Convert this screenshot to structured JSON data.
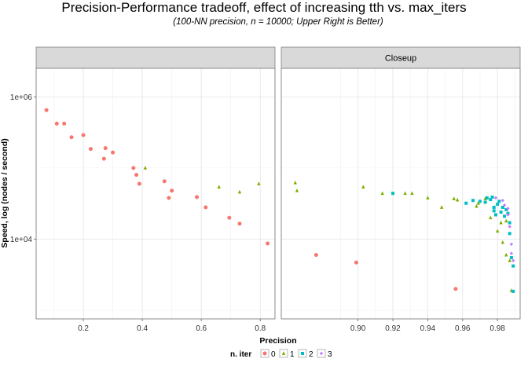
{
  "chart_data": {
    "type": "scatter",
    "title": "Precision-Performance tradeoff, effect of increasing tth vs. max_iters",
    "subtitle": "(100-NN precision, n = 10000; Upper Right is Better)",
    "xlabel": "Precision",
    "ylabel": "Speed, log (nodes / second)",
    "y_scale": "log10",
    "grid": true,
    "legend": {
      "title": "n. iter",
      "placement": "bottom",
      "entries": [
        "0",
        "1",
        "2",
        "3"
      ],
      "colors": [
        "#F8766D",
        "#7CAE00",
        "#00BFC4",
        "#C77CFF"
      ]
    },
    "panels": [
      {
        "strip": "",
        "xlim": [
          0.04,
          0.85
        ],
        "ylim_log10": [
          2.88,
          6.4
        ],
        "xticks": [
          0.2,
          0.4,
          0.6,
          0.8
        ],
        "xtick_labels": [
          "0.2",
          "0.4",
          "0.6",
          "0.8"
        ],
        "yticks": [
          1000000,
          10000
        ],
        "ytick_labels": [
          "1e+06",
          "1e+04"
        ],
        "series": [
          {
            "name": "0",
            "points": [
              [
                0.075,
                650000
              ],
              [
                0.11,
                420000
              ],
              [
                0.135,
                420000
              ],
              [
                0.16,
                270000
              ],
              [
                0.2,
                290000
              ],
              [
                0.225,
                185000
              ],
              [
                0.27,
                135000
              ],
              [
                0.275,
                190000
              ],
              [
                0.3,
                165000
              ],
              [
                0.37,
                100000
              ],
              [
                0.38,
                80000
              ],
              [
                0.39,
                60000
              ],
              [
                0.475,
                65000
              ],
              [
                0.49,
                38000
              ],
              [
                0.5,
                48000
              ],
              [
                0.585,
                39000
              ],
              [
                0.615,
                28000
              ],
              [
                0.695,
                20000
              ],
              [
                0.73,
                16500
              ],
              [
                0.825,
                8700
              ]
            ]
          },
          {
            "name": "1",
            "points": [
              [
                0.41,
                100000
              ],
              [
                0.66,
                54000
              ],
              [
                0.73,
                46000
              ],
              [
                0.795,
                60000
              ]
            ]
          }
        ]
      },
      {
        "strip": "Closeup",
        "xlim": [
          0.856,
          0.993
        ],
        "ylim_log10": [
          2.88,
          6.4
        ],
        "xticks": [
          0.9,
          0.92,
          0.94,
          0.96,
          0.98
        ],
        "xtick_labels": [
          "0.90",
          "0.92",
          "0.94",
          "0.96",
          "0.98"
        ],
        "yticks": [],
        "ytick_labels": [],
        "series": [
          {
            "name": "0",
            "points": [
              [
                0.876,
                6000
              ],
              [
                0.899,
                4700
              ],
              [
                0.956,
                2000
              ]
            ]
          },
          {
            "name": "1",
            "points": [
              [
                0.864,
                62000
              ],
              [
                0.865,
                48000
              ],
              [
                0.903,
                54000
              ],
              [
                0.914,
                44000
              ],
              [
                0.927,
                44000
              ],
              [
                0.931,
                44000
              ],
              [
                0.94,
                38000
              ],
              [
                0.948,
                28000
              ],
              [
                0.955,
                37000
              ],
              [
                0.957,
                35500
              ],
              [
                0.968,
                29000
              ],
              [
                0.969,
                32000
              ],
              [
                0.973,
                37000
              ],
              [
                0.976,
                20000
              ],
              [
                0.98,
                13000
              ],
              [
                0.982,
                17000
              ],
              [
                0.983,
                9000
              ],
              [
                0.985,
                18000
              ],
              [
                0.985,
                6000
              ],
              [
                0.987,
                5000
              ],
              [
                0.988,
                1900
              ]
            ]
          },
          {
            "name": "2",
            "points": [
              [
                0.92,
                44000
              ],
              [
                0.962,
                32000
              ],
              [
                0.966,
                35000
              ],
              [
                0.97,
                34000
              ],
              [
                0.973,
                33000
              ],
              [
                0.974,
                38000
              ],
              [
                0.976,
                36000
              ],
              [
                0.977,
                39000
              ],
              [
                0.978,
                25000
              ],
              [
                0.978,
                28000
              ],
              [
                0.979,
                22000
              ],
              [
                0.98,
                31000
              ],
              [
                0.981,
                34000
              ],
              [
                0.982,
                24000
              ],
              [
                0.983,
                28000
              ],
              [
                0.984,
                21000
              ],
              [
                0.985,
                26000
              ],
              [
                0.986,
                23000
              ],
              [
                0.987,
                17000
              ],
              [
                0.987,
                12000
              ],
              [
                0.988,
                5500
              ],
              [
                0.989,
                4200
              ],
              [
                0.989,
                1850
              ]
            ]
          },
          {
            "name": "3",
            "points": [
              [
                0.979,
                38000
              ],
              [
                0.983,
                35000
              ],
              [
                0.984,
                30000
              ],
              [
                0.986,
                27000
              ],
              [
                0.986,
                22000
              ],
              [
                0.987,
                15000
              ],
              [
                0.988,
                8500
              ],
              [
                0.988,
                6300
              ],
              [
                0.989,
                5000
              ]
            ]
          }
        ]
      }
    ]
  }
}
